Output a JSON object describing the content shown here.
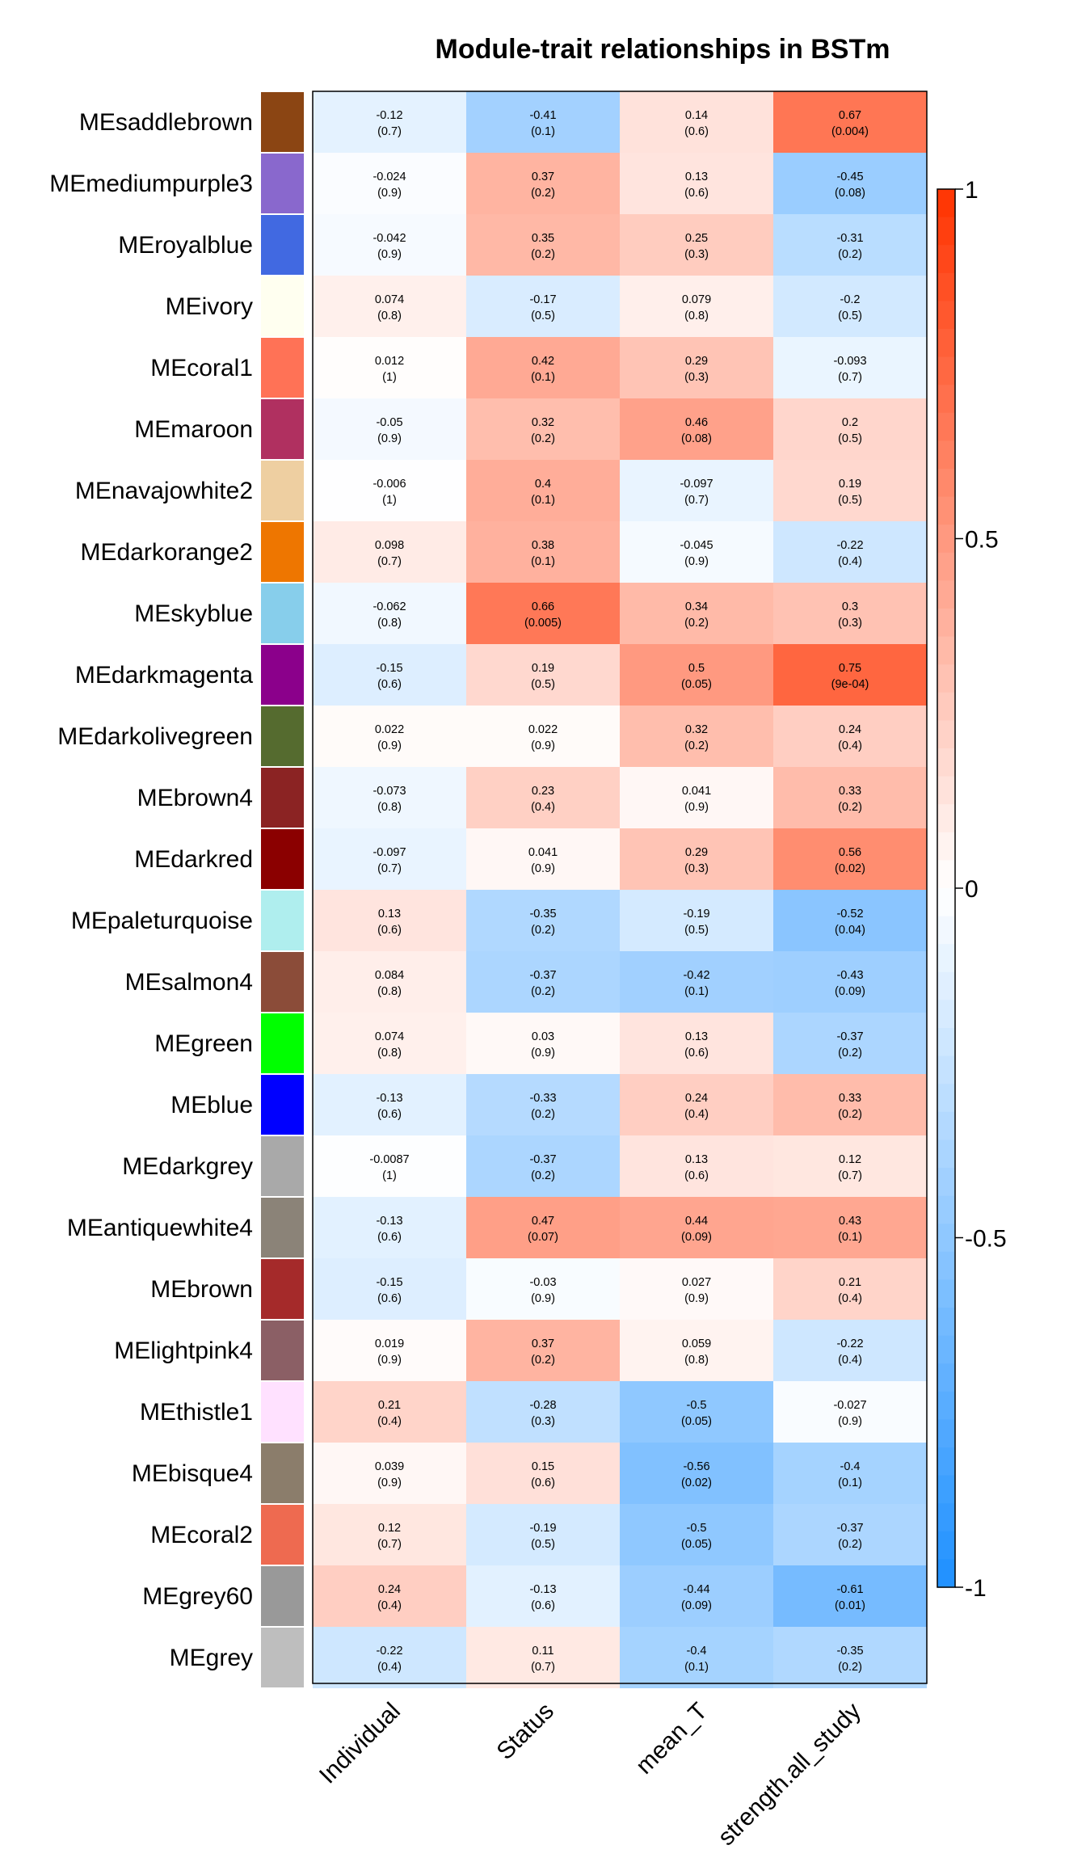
{
  "chart_data": {
    "type": "heatmap",
    "title": "Module-trait relationships in BSTm",
    "columns": [
      "Individual",
      "Status",
      "mean_T",
      "strength.all_study"
    ],
    "rows": [
      {
        "module": "MEsaddlebrown",
        "color": "#8B4513",
        "corr": [
          "-0.12",
          "-0.41",
          "0.14",
          "0.67"
        ],
        "p": [
          "(0.7)",
          "(0.1)",
          "(0.6)",
          "(0.004)"
        ]
      },
      {
        "module": "MEmediumpurple3",
        "color": "#8968CD",
        "corr": [
          "-0.024",
          "0.37",
          "0.13",
          "-0.45"
        ],
        "p": [
          "(0.9)",
          "(0.2)",
          "(0.6)",
          "(0.08)"
        ]
      },
      {
        "module": "MEroyalblue",
        "color": "#4169E1",
        "corr": [
          "-0.042",
          "0.35",
          "0.25",
          "-0.31"
        ],
        "p": [
          "(0.9)",
          "(0.2)",
          "(0.3)",
          "(0.2)"
        ]
      },
      {
        "module": "MEivory",
        "color": "#FFFFF0",
        "corr": [
          "0.074",
          "-0.17",
          "0.079",
          "-0.2"
        ],
        "p": [
          "(0.8)",
          "(0.5)",
          "(0.8)",
          "(0.5)"
        ]
      },
      {
        "module": "MEcoral1",
        "color": "#FF7256",
        "corr": [
          "0.012",
          "0.42",
          "0.29",
          "-0.093"
        ],
        "p": [
          "(1)",
          "(0.1)",
          "(0.3)",
          "(0.7)"
        ]
      },
      {
        "module": "MEmaroon",
        "color": "#B03060",
        "corr": [
          "-0.05",
          "0.32",
          "0.46",
          "0.2"
        ],
        "p": [
          "(0.9)",
          "(0.2)",
          "(0.08)",
          "(0.5)"
        ]
      },
      {
        "module": "MEnavajowhite2",
        "color": "#EECFA1",
        "corr": [
          "-0.006",
          "0.4",
          "-0.097",
          "0.19"
        ],
        "p": [
          "(1)",
          "(0.1)",
          "(0.7)",
          "(0.5)"
        ]
      },
      {
        "module": "MEdarkorange2",
        "color": "#EE7600",
        "corr": [
          "0.098",
          "0.38",
          "-0.045",
          "-0.22"
        ],
        "p": [
          "(0.7)",
          "(0.1)",
          "(0.9)",
          "(0.4)"
        ]
      },
      {
        "module": "MEskyblue",
        "color": "#87CEEB",
        "corr": [
          "-0.062",
          "0.66",
          "0.34",
          "0.3"
        ],
        "p": [
          "(0.8)",
          "(0.005)",
          "(0.2)",
          "(0.3)"
        ]
      },
      {
        "module": "MEdarkmagenta",
        "color": "#8B008B",
        "corr": [
          "-0.15",
          "0.19",
          "0.5",
          "0.75"
        ],
        "p": [
          "(0.6)",
          "(0.5)",
          "(0.05)",
          "(9e-04)"
        ]
      },
      {
        "module": "MEdarkolivegreen",
        "color": "#556B2F",
        "corr": [
          "0.022",
          "0.022",
          "0.32",
          "0.24"
        ],
        "p": [
          "(0.9)",
          "(0.9)",
          "(0.2)",
          "(0.4)"
        ]
      },
      {
        "module": "MEbrown4",
        "color": "#8B2323",
        "corr": [
          "-0.073",
          "0.23",
          "0.041",
          "0.33"
        ],
        "p": [
          "(0.8)",
          "(0.4)",
          "(0.9)",
          "(0.2)"
        ]
      },
      {
        "module": "MEdarkred",
        "color": "#8B0000",
        "corr": [
          "-0.097",
          "0.041",
          "0.29",
          "0.56"
        ],
        "p": [
          "(0.7)",
          "(0.9)",
          "(0.3)",
          "(0.02)"
        ]
      },
      {
        "module": "MEpaleturquoise",
        "color": "#AFEEEE",
        "corr": [
          "0.13",
          "-0.35",
          "-0.19",
          "-0.52"
        ],
        "p": [
          "(0.6)",
          "(0.2)",
          "(0.5)",
          "(0.04)"
        ]
      },
      {
        "module": "MEsalmon4",
        "color": "#8B4C39",
        "corr": [
          "0.084",
          "-0.37",
          "-0.42",
          "-0.43"
        ],
        "p": [
          "(0.8)",
          "(0.2)",
          "(0.1)",
          "(0.09)"
        ]
      },
      {
        "module": "MEgreen",
        "color": "#00FF00",
        "corr": [
          "0.074",
          "0.03",
          "0.13",
          "-0.37"
        ],
        "p": [
          "(0.8)",
          "(0.9)",
          "(0.6)",
          "(0.2)"
        ]
      },
      {
        "module": "MEblue",
        "color": "#0000FF",
        "corr": [
          "-0.13",
          "-0.33",
          "0.24",
          "0.33"
        ],
        "p": [
          "(0.6)",
          "(0.2)",
          "(0.4)",
          "(0.2)"
        ]
      },
      {
        "module": "MEdarkgrey",
        "color": "#A9A9A9",
        "corr": [
          "-0.0087",
          "-0.37",
          "0.13",
          "0.12"
        ],
        "p": [
          "(1)",
          "(0.2)",
          "(0.6)",
          "(0.7)"
        ]
      },
      {
        "module": "MEantiquewhite4",
        "color": "#8B8378",
        "corr": [
          "-0.13",
          "0.47",
          "0.44",
          "0.43"
        ],
        "p": [
          "(0.6)",
          "(0.07)",
          "(0.09)",
          "(0.1)"
        ]
      },
      {
        "module": "MEbrown",
        "color": "#A52A2A",
        "corr": [
          "-0.15",
          "-0.03",
          "0.027",
          "0.21"
        ],
        "p": [
          "(0.6)",
          "(0.9)",
          "(0.9)",
          "(0.4)"
        ]
      },
      {
        "module": "MElightpink4",
        "color": "#8B5F65",
        "corr": [
          "0.019",
          "0.37",
          "0.059",
          "-0.22"
        ],
        "p": [
          "(0.9)",
          "(0.2)",
          "(0.8)",
          "(0.4)"
        ]
      },
      {
        "module": "MEthistle1",
        "color": "#FFE1FF",
        "corr": [
          "0.21",
          "-0.28",
          "-0.5",
          "-0.027"
        ],
        "p": [
          "(0.4)",
          "(0.3)",
          "(0.05)",
          "(0.9)"
        ]
      },
      {
        "module": "MEbisque4",
        "color": "#8B7D6B",
        "corr": [
          "0.039",
          "0.15",
          "-0.56",
          "-0.4"
        ],
        "p": [
          "(0.9)",
          "(0.6)",
          "(0.02)",
          "(0.1)"
        ]
      },
      {
        "module": "MEcoral2",
        "color": "#EE6A50",
        "corr": [
          "0.12",
          "-0.19",
          "-0.5",
          "-0.37"
        ],
        "p": [
          "(0.7)",
          "(0.5)",
          "(0.05)",
          "(0.2)"
        ]
      },
      {
        "module": "MEgrey60",
        "color": "#999999",
        "corr": [
          "0.24",
          "-0.13",
          "-0.44",
          "-0.61"
        ],
        "p": [
          "(0.4)",
          "(0.6)",
          "(0.09)",
          "(0.01)"
        ]
      },
      {
        "module": "MEgrey",
        "color": "#BEBEBE",
        "corr": [
          "-0.22",
          "0.11",
          "-0.4",
          "-0.35"
        ],
        "p": [
          "(0.4)",
          "(0.7)",
          "(0.1)",
          "(0.2)"
        ]
      }
    ],
    "colorbar": {
      "range": [
        -1,
        1
      ],
      "ticks": [
        "1",
        "0.5",
        "0",
        "-0.5",
        "-1"
      ],
      "colors": {
        "negative": "#1E90FF",
        "zero": "#FFFFFF",
        "positive": "#FF3300"
      }
    }
  }
}
